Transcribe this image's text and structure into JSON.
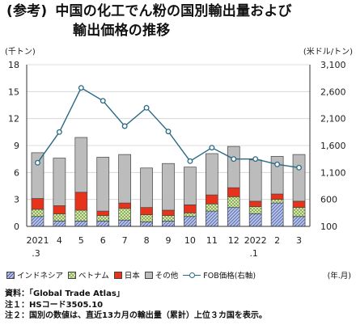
{
  "title": {
    "tag": "(参考)",
    "line1": "中国の化工でん粉の国別輸出量および",
    "line2": "輸出価格の推移"
  },
  "chart_data": {
    "type": "bar",
    "stacked": true,
    "categories": [
      "2021",
      "4",
      "5",
      "6",
      "7",
      "8",
      "9",
      "10",
      "11",
      "12",
      "2022",
      "2",
      "3"
    ],
    "category_sublabels": [
      ".3",
      "",
      "",
      "",
      "",
      "",
      "",
      "",
      "",
      "",
      ".1",
      "",
      ""
    ],
    "left_axis": {
      "unit": "(千トン)",
      "min": 0,
      "max": 18,
      "ticks": [
        "0",
        "3",
        "6",
        "9",
        "12",
        "15",
        "18"
      ]
    },
    "right_axis": {
      "unit": "(米ドル/トン)",
      "min": 100,
      "max": 3100,
      "ticks": [
        "100",
        "600",
        "1,100",
        "1,600",
        "2,100",
        "2,600",
        "3,100"
      ]
    },
    "x_unit": "(年.月)",
    "series": [
      {
        "name": "インドネシア",
        "color": "#b9c4e6",
        "pattern": "hatch",
        "values": [
          1.1,
          0.6,
          0.6,
          0.6,
          0.7,
          0.5,
          0.6,
          1.1,
          1.7,
          2.1,
          1.4,
          2.6,
          1.1
        ]
      },
      {
        "name": "ベトナム",
        "color": "#cfe3a5",
        "pattern": "cross",
        "values": [
          0.8,
          0.8,
          1.2,
          0.6,
          1.3,
          0.8,
          0.6,
          0.4,
          0.8,
          1.2,
          0.8,
          0.4,
          1.0
        ]
      },
      {
        "name": "日本",
        "color": "#e8331c",
        "pattern": "solid",
        "values": [
          1.2,
          0.9,
          2.0,
          0.5,
          0.6,
          0.8,
          0.6,
          0.9,
          1.0,
          1.0,
          0.6,
          0.6,
          0.7
        ]
      },
      {
        "name": "その他",
        "color": "#bcbcbc",
        "pattern": "solid",
        "values": [
          5.1,
          5.3,
          6.1,
          6.0,
          5.4,
          4.4,
          5.2,
          4.2,
          4.6,
          4.6,
          4.6,
          4.2,
          5.2
        ]
      }
    ],
    "line_series": {
      "name": "FOB価格(右軸)",
      "color": "#2a6a85",
      "axis": "right",
      "values": [
        1280,
        1850,
        2670,
        2430,
        1960,
        2300,
        1860,
        1310,
        1560,
        1350,
        1350,
        1250,
        1190
      ]
    }
  },
  "notes": [
    "資料：「Global Trade Atlas」",
    "注１：HSコード3505.10",
    "注２：国別の数値は、直近13カ月の輸出量（累計）上位３カ国を表示。"
  ]
}
